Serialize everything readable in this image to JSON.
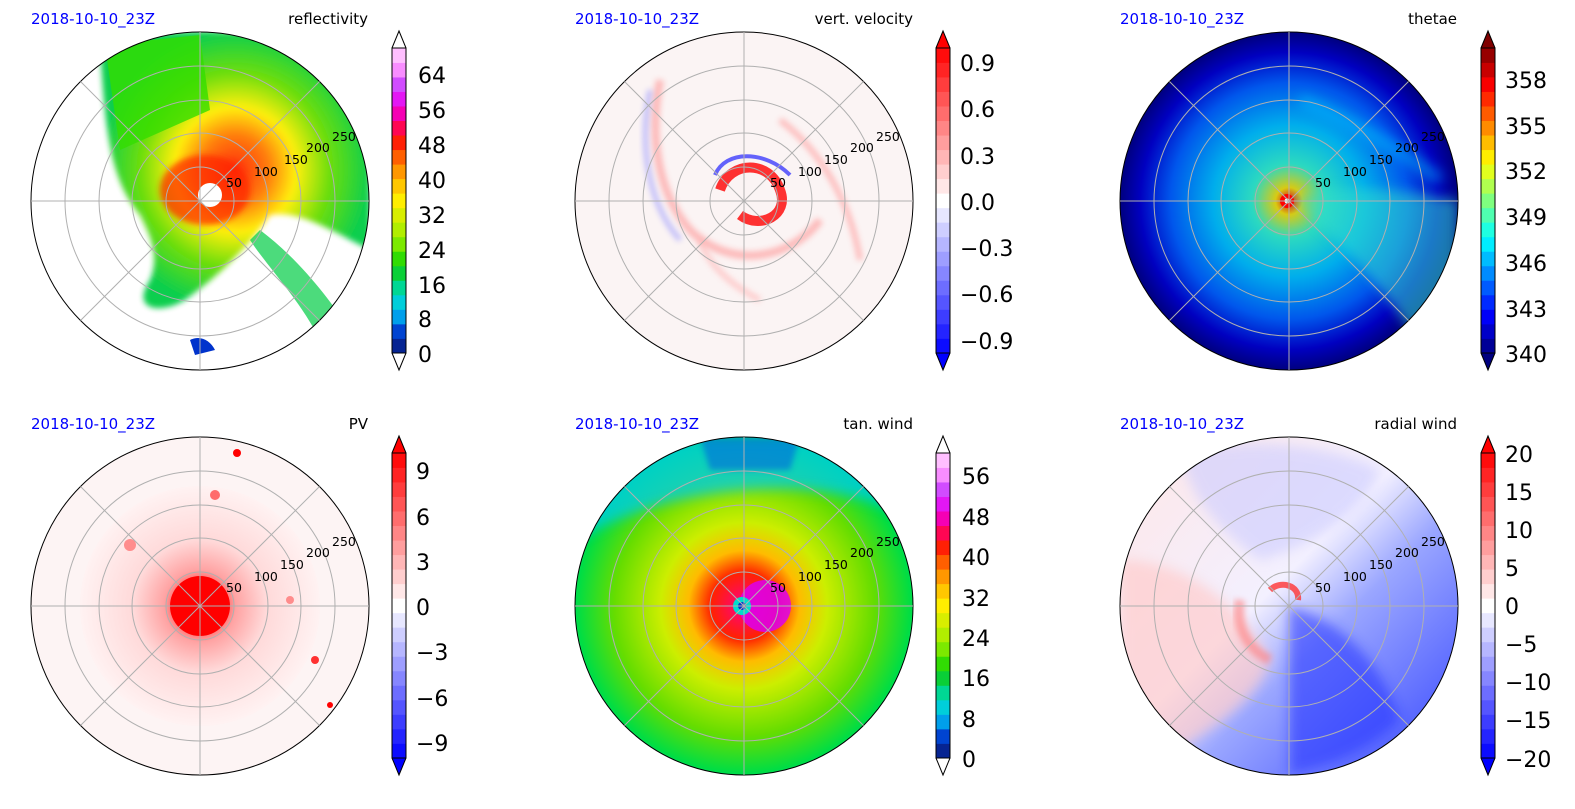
{
  "figure": {
    "panels": [
      {
        "id": "reflectivity",
        "date": "2018-10-10_23Z",
        "title": "reflectivity"
      },
      {
        "id": "vert-velocity",
        "date": "2018-10-10_23Z",
        "title": "vert. velocity"
      },
      {
        "id": "thetae",
        "date": "2018-10-10_23Z",
        "title": "thetae"
      },
      {
        "id": "pv",
        "date": "2018-10-10_23Z",
        "title": "PV"
      },
      {
        "id": "tan-wind",
        "date": "2018-10-10_23Z",
        "title": "tan. wind"
      },
      {
        "id": "radial-wind",
        "date": "2018-10-10_23Z",
        "title": "radial wind"
      }
    ]
  },
  "chart_data": [
    {
      "type": "heatmap",
      "projection": "polar",
      "title": "reflectivity",
      "date_label": "2018-10-10_23Z",
      "radial_ticks": [
        "50",
        "100",
        "150",
        "200",
        "250"
      ],
      "colorbar": {
        "ticks": [
          "0",
          "8",
          "16",
          "24",
          "32",
          "40",
          "48",
          "56",
          "64"
        ],
        "range": [
          0,
          70
        ],
        "extend": "both",
        "cmap": "nws-reflectivity"
      },
      "colors": [
        "#0a1a6e",
        "#0033cc",
        "#00aaee",
        "#00e0d0",
        "#00cc44",
        "#33dd00",
        "#99ee00",
        "#ccee00",
        "#ffee00",
        "#ffbb00",
        "#ff7700",
        "#ff2200",
        "#ff0066",
        "#ee00ee",
        "#cc44ff",
        "#ff99ff",
        "#ffd6ff"
      ]
    },
    {
      "type": "heatmap",
      "projection": "polar",
      "title": "vert. velocity",
      "date_label": "2018-10-10_23Z",
      "radial_ticks": [
        "50",
        "100",
        "150",
        "200",
        "250"
      ],
      "colorbar": {
        "ticks": [
          "0.9",
          "0.6",
          "0.3",
          "0.0",
          "−0.3",
          "−0.6",
          "−0.9"
        ],
        "range": [
          -1.05,
          1.05
        ],
        "extend": "both",
        "cmap": "bwr"
      },
      "colors": [
        "#0000ff",
        "#ffffff",
        "#ff0000"
      ]
    },
    {
      "type": "heatmap",
      "projection": "polar",
      "title": "thetae",
      "date_label": "2018-10-10_23Z",
      "radial_ticks": [
        "50",
        "100",
        "150",
        "200",
        "250"
      ],
      "colorbar": {
        "ticks": [
          "358",
          "355",
          "352",
          "349",
          "346",
          "343",
          "340"
        ],
        "range": [
          340,
          360
        ],
        "extend": "both",
        "cmap": "jet"
      },
      "colors": [
        "#00007f",
        "#0000ff",
        "#007fff",
        "#00ffff",
        "#7fff7f",
        "#ffff00",
        "#ff7f00",
        "#ff0000",
        "#7f0000"
      ]
    },
    {
      "type": "heatmap",
      "projection": "polar",
      "title": "PV",
      "date_label": "2018-10-10_23Z",
      "radial_ticks": [
        "50",
        "100",
        "150",
        "200",
        "250"
      ],
      "colorbar": {
        "ticks": [
          "9",
          "6",
          "3",
          "0",
          "−3",
          "−6",
          "−9"
        ],
        "range": [
          -10.5,
          10.5
        ],
        "extend": "both",
        "cmap": "bwr"
      },
      "colors": [
        "#0000ff",
        "#ffffff",
        "#ff0000"
      ]
    },
    {
      "type": "heatmap",
      "projection": "polar",
      "title": "tan. wind",
      "date_label": "2018-10-10_23Z",
      "radial_ticks": [
        "50",
        "100",
        "150",
        "200",
        "250"
      ],
      "colorbar": {
        "ticks": [
          "56",
          "48",
          "40",
          "32",
          "24",
          "16",
          "8",
          "0"
        ],
        "range": [
          0,
          62
        ],
        "extend": "both",
        "cmap": "nws-reflectivity"
      },
      "colors": [
        "#0a1a6e",
        "#0033cc",
        "#00aaee",
        "#00e0d0",
        "#00cc44",
        "#33dd00",
        "#99ee00",
        "#ccee00",
        "#ffee00",
        "#ffbb00",
        "#ff7700",
        "#ff2200",
        "#ff0066",
        "#ee00ee",
        "#cc44ff",
        "#ff99ff",
        "#ffd6ff"
      ]
    },
    {
      "type": "heatmap",
      "projection": "polar",
      "title": "radial wind",
      "date_label": "2018-10-10_23Z",
      "radial_ticks": [
        "50",
        "100",
        "150",
        "200",
        "250"
      ],
      "colorbar": {
        "ticks": [
          "20",
          "15",
          "10",
          "5",
          "0",
          "−5",
          "−10",
          "−15",
          "−20"
        ],
        "range": [
          -21,
          21
        ],
        "extend": "both",
        "cmap": "bwr"
      },
      "colors": [
        "#0000ff",
        "#ffffff",
        "#ff0000"
      ]
    }
  ]
}
